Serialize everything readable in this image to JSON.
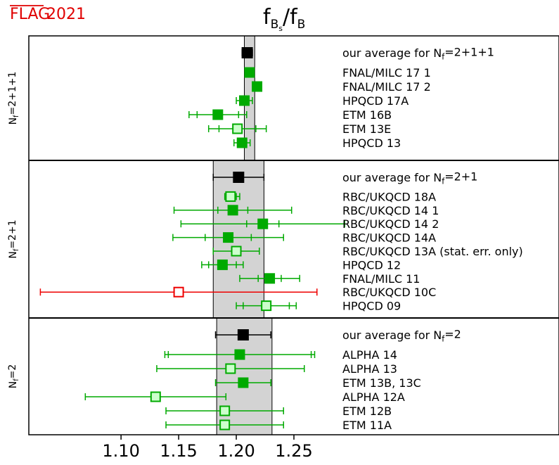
{
  "header": {
    "flag_logo": "FLAG",
    "flag_year": "2021",
    "title": "f_Bs/f_B"
  },
  "colors": {
    "average": "#000000",
    "filled": "#00aa00",
    "open_edge": "#00aa00",
    "open_fill": "#ccffcc",
    "red": "#ee0000",
    "band": "#d3d3d3"
  },
  "chart_data": {
    "type": "scatter",
    "title": "f_Bs/f_B",
    "xlabel": "",
    "xlim": [
      1.02,
      1.48
    ],
    "xticks": [
      1.1,
      1.15,
      1.2,
      1.25
    ],
    "xtick_labels": [
      "1.10",
      "1.15",
      "1.20",
      "1.25"
    ],
    "panels": [
      {
        "ylabel": "Nf=2+1+1",
        "band": [
          1.207,
          1.216
        ],
        "entries": [
          {
            "label": "our average for Nf=2+1+1",
            "kind": "average",
            "value": 1.2095,
            "err_lo": 0.0045,
            "err_hi": 0.0045,
            "stat_lo": null,
            "stat_hi": null
          },
          {
            "label": "FNAL/MILC 17 1",
            "kind": "filled",
            "value": 1.2115,
            "err_lo": 0.002,
            "err_hi": 0.002,
            "stat_lo": null,
            "stat_hi": null
          },
          {
            "label": "FNAL/MILC 17 2",
            "kind": "filled",
            "value": 1.218,
            "err_lo": 0.003,
            "err_hi": 0.003,
            "stat_lo": null,
            "stat_hi": null
          },
          {
            "label": "HPQCD 17A",
            "kind": "filled",
            "value": 1.207,
            "err_lo": 0.007,
            "err_hi": 0.007,
            "stat_lo": null,
            "stat_hi": null
          },
          {
            "label": "ETM 16B",
            "kind": "filled",
            "value": 1.184,
            "err_lo": 0.025,
            "err_hi": 0.025,
            "stat_lo": 0.018,
            "stat_hi": 0.018
          },
          {
            "label": "ETM 13E",
            "kind": "open",
            "value": 1.201,
            "err_lo": 0.025,
            "err_hi": 0.025,
            "stat_lo": 0.016,
            "stat_hi": 0.016
          },
          {
            "label": "HPQCD 13",
            "kind": "filled",
            "value": 1.205,
            "err_lo": 0.007,
            "err_hi": 0.007,
            "stat_lo": 0.004,
            "stat_hi": 0.004
          }
        ]
      },
      {
        "ylabel": "Nf=2+1",
        "band": [
          1.18,
          1.224
        ],
        "entries": [
          {
            "label": "our average for Nf=2+1",
            "kind": "average",
            "value": 1.202,
            "err_lo": 0.022,
            "err_hi": 0.022,
            "stat_lo": null,
            "stat_hi": null
          },
          {
            "label": "RBC/UKQCD 18A",
            "kind": "open",
            "value": 1.195,
            "err_lo": 0.005,
            "err_hi": 0.008,
            "stat_lo": 0.003,
            "stat_hi": 0.005
          },
          {
            "label": "RBC/UKQCD 14 1",
            "kind": "filled",
            "value": 1.197,
            "err_lo": 0.051,
            "err_hi": 0.051,
            "stat_lo": 0.013,
            "stat_hi": 0.013
          },
          {
            "label": "RBC/UKQCD 14 2",
            "kind": "filled",
            "value": 1.223,
            "err_lo": 0.071,
            "err_hi": 0.071,
            "stat_lo": 0.014,
            "stat_hi": 0.014
          },
          {
            "label": "RBC/UKQCD 14A",
            "kind": "filled",
            "value": 1.193,
            "err_lo": 0.048,
            "err_hi": 0.048,
            "stat_lo": 0.02,
            "stat_hi": 0.02
          },
          {
            "label": "RBC/UKQCD 13A (stat. err. only)",
            "kind": "open",
            "value": 1.2,
            "err_lo": 0.02,
            "err_hi": 0.02,
            "stat_lo": null,
            "stat_hi": null
          },
          {
            "label": "HPQCD 12",
            "kind": "filled",
            "value": 1.188,
            "err_lo": 0.018,
            "err_hi": 0.018,
            "stat_lo": 0.012,
            "stat_hi": 0.012
          },
          {
            "label": "FNAL/MILC 11",
            "kind": "filled",
            "value": 1.229,
            "err_lo": 0.026,
            "err_hi": 0.026,
            "stat_lo": 0.01,
            "stat_hi": 0.01
          },
          {
            "label": "RBC/UKQCD 10C",
            "kind": "open_red",
            "value": 1.15,
            "err_lo": 0.12,
            "err_hi": 0.12,
            "stat_lo": null,
            "stat_hi": null
          },
          {
            "label": "HPQCD 09",
            "kind": "open",
            "value": 1.226,
            "err_lo": 0.026,
            "err_hi": 0.026,
            "stat_lo": 0.02,
            "stat_hi": 0.02
          }
        ]
      },
      {
        "ylabel": "Nf=2",
        "band": [
          1.183,
          1.231
        ],
        "entries": [
          {
            "label": "our average for Nf=2",
            "kind": "average",
            "value": 1.206,
            "err_lo": 0.024,
            "err_hi": 0.024,
            "stat_lo": null,
            "stat_hi": null
          },
          {
            "label": "ALPHA 14",
            "kind": "filled",
            "value": 1.203,
            "err_lo": 0.065,
            "err_hi": 0.065,
            "stat_lo": 0.062,
            "stat_hi": 0.062
          },
          {
            "label": "ALPHA 13",
            "kind": "open",
            "value": 1.195,
            "err_lo": 0.064,
            "err_hi": 0.064,
            "stat_lo": null,
            "stat_hi": null
          },
          {
            "label": "ETM 13B, 13C",
            "kind": "filled",
            "value": 1.206,
            "err_lo": 0.024,
            "err_hi": 0.024,
            "stat_lo": null,
            "stat_hi": null
          },
          {
            "label": "ALPHA 12A",
            "kind": "open",
            "value": 1.13,
            "err_lo": 0.061,
            "err_hi": 0.061,
            "stat_lo": null,
            "stat_hi": null
          },
          {
            "label": "ETM 12B",
            "kind": "open",
            "value": 1.19,
            "err_lo": 0.051,
            "err_hi": 0.051,
            "stat_lo": null,
            "stat_hi": null
          },
          {
            "label": "ETM 11A",
            "kind": "open",
            "value": 1.19,
            "err_lo": 0.051,
            "err_hi": 0.051,
            "stat_lo": null,
            "stat_hi": null
          }
        ]
      }
    ]
  }
}
